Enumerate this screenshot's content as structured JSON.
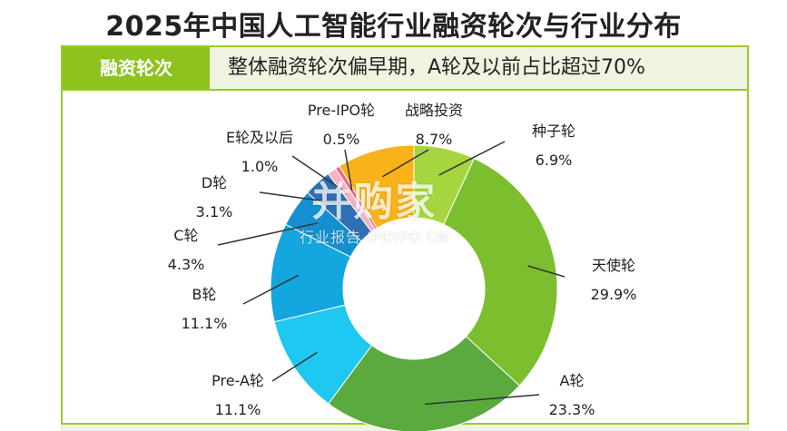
{
  "title": "2025年中国人工智能行业融资轮次与行业分布",
  "banner": {
    "tag": "融资轮次",
    "summary": "整体融资轮次偏早期，A轮及以前占比超过70%"
  },
  "watermark": {
    "main": "并购家",
    "sub": "行业报告 IPOIPO.CN"
  },
  "chart_data": {
    "type": "pie",
    "donut": true,
    "categories": [
      "种子轮",
      "天使轮",
      "A轮",
      "Pre-A轮",
      "B轮",
      "C轮",
      "D轮",
      "E轮及以后",
      "Pre-IPO轮",
      "战略投资"
    ],
    "values": [
      6.9,
      29.9,
      23.3,
      11.1,
      11.1,
      4.3,
      3.1,
      1.0,
      0.5,
      8.7
    ],
    "value_labels": [
      "6.9%",
      "29.9%",
      "23.3%",
      "11.1%",
      "11.1%",
      "4.3%",
      "3.1%",
      "1.0%",
      "0.5%",
      "8.7%"
    ],
    "colors": [
      "#a5d63f",
      "#7cbf2e",
      "#5aaa3d",
      "#1ec8f0",
      "#14a6de",
      "#1590cf",
      "#2f6fb3",
      "#f7b3c0",
      "#e86a84",
      "#f9b21a"
    ],
    "start_angle_deg": 0,
    "direction": "clockwise",
    "legend": "none"
  }
}
